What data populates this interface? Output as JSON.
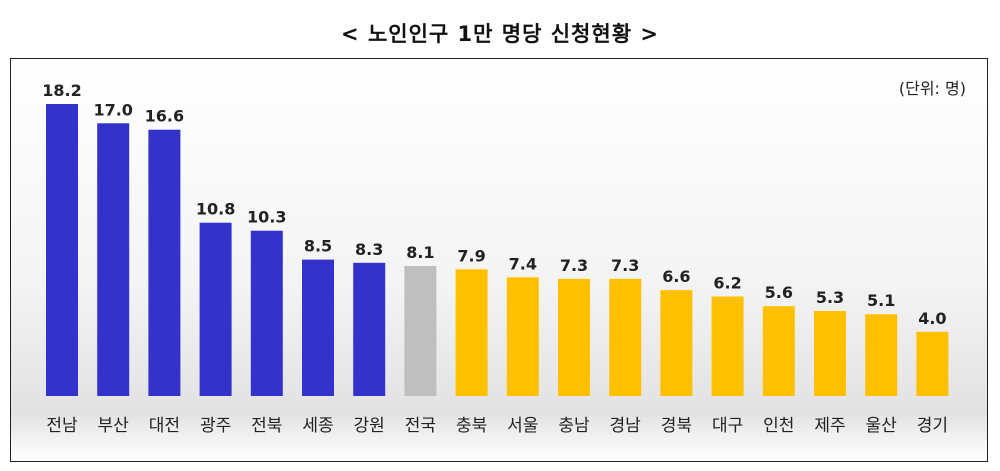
{
  "title": "< 노인인구 1만 명당 신청현황 >",
  "unit": "(단위: 명)",
  "colors": {
    "high": "#3333cc",
    "national": "#bfbfbf",
    "low": "#ffc000",
    "text": "#222222"
  },
  "chart_data": {
    "type": "bar",
    "title": "< 노인인구 1만 명당 신청현황 >",
    "unit": "(단위: 명)",
    "categories": [
      "전남",
      "부산",
      "대전",
      "광주",
      "전북",
      "세종",
      "강원",
      "전국",
      "충북",
      "서울",
      "충남",
      "경남",
      "경북",
      "대구",
      "인천",
      "제주",
      "울산",
      "경기"
    ],
    "values": [
      18.2,
      17.0,
      16.6,
      10.8,
      10.3,
      8.5,
      8.3,
      8.1,
      7.9,
      7.4,
      7.3,
      7.3,
      6.6,
      6.2,
      5.6,
      5.3,
      5.1,
      4.0
    ],
    "value_labels": [
      "18.2",
      "17.0",
      "16.6",
      "10.8",
      "10.3",
      "8.5",
      "8.3",
      "8.1",
      "7.9",
      "7.4",
      "7.3",
      "7.3",
      "6.6",
      "6.2",
      "5.6",
      "5.3",
      "5.1",
      "4.0"
    ],
    "bar_groups": [
      "high",
      "high",
      "high",
      "high",
      "high",
      "high",
      "high",
      "national",
      "low",
      "low",
      "low",
      "low",
      "low",
      "low",
      "low",
      "low",
      "low",
      "low"
    ],
    "ylim": [
      0,
      18.2
    ],
    "grid": false,
    "legend": "none"
  }
}
